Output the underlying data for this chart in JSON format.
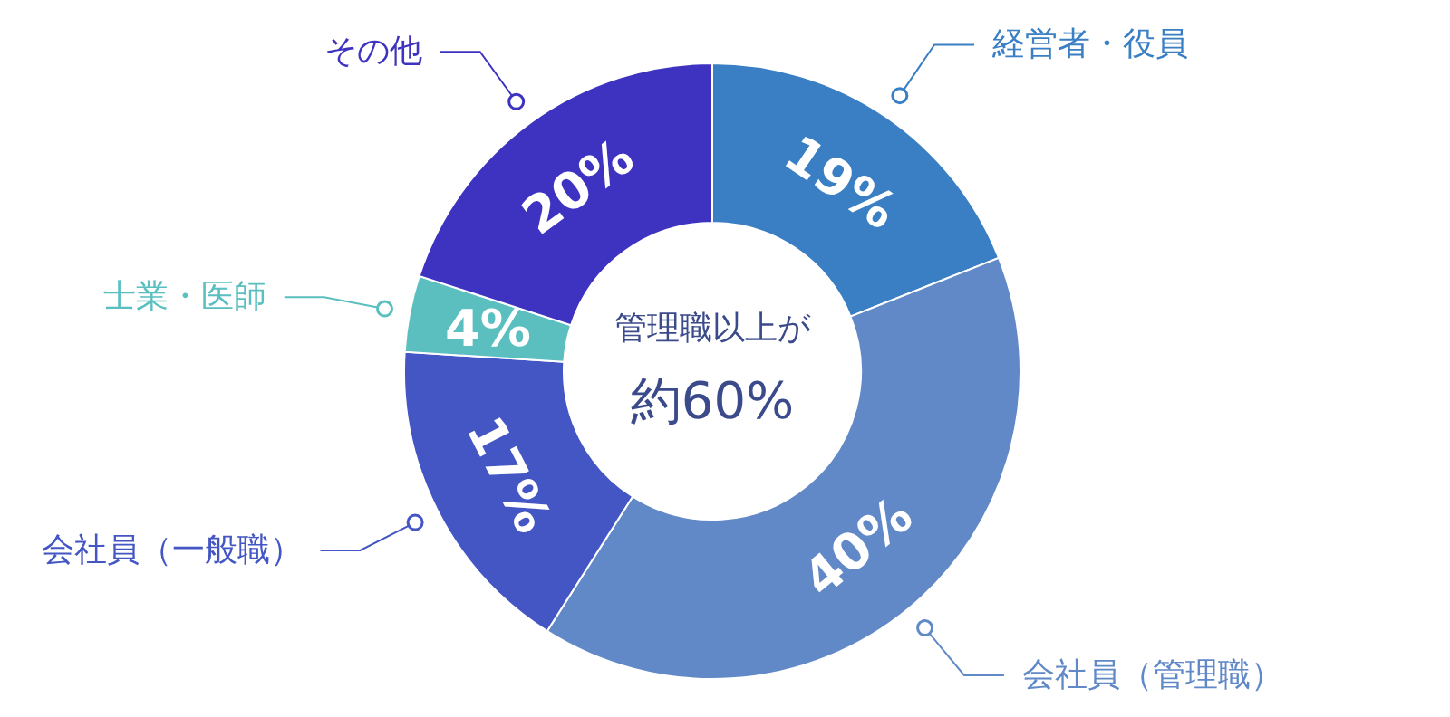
{
  "chart_data": {
    "type": "donut",
    "categories": [
      "経営者・役員",
      "会社員（管理職）",
      "会社員（一般職）",
      "士業・医師",
      "その他"
    ],
    "values": [
      19,
      40,
      17,
      4,
      20
    ],
    "colors": [
      "#3a7fc4",
      "#6189c8",
      "#4356c4",
      "#5bbfc0",
      "#3e33c0"
    ],
    "value_labels": [
      "19%",
      "40%",
      "17%",
      "4%",
      "20%"
    ],
    "annotations": [
      "管理職以上が",
      "約60%"
    ]
  }
}
